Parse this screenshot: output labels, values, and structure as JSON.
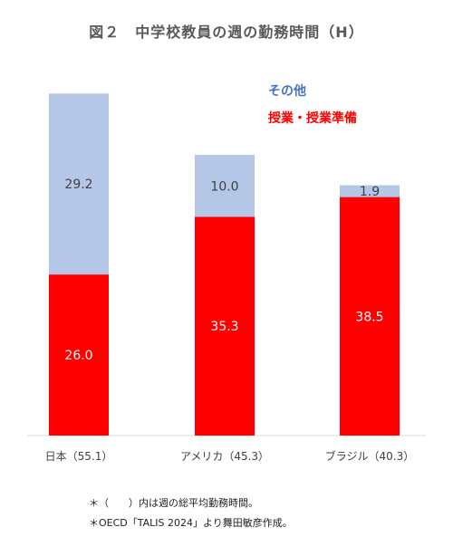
{
  "chart_data": {
    "type": "bar",
    "stacked": true,
    "title": "図２　中学校教員の週の勤務時間（H）",
    "categories": [
      "日本（55.1）",
      "アメリカ（45.3）",
      "ブラジル（40.3）"
    ],
    "series": [
      {
        "name": "授業・授業準備",
        "values": [
          26.0,
          35.3,
          38.5
        ],
        "color": "#ff0000",
        "label_color": "#ffffff"
      },
      {
        "name": "その他",
        "values": [
          29.2,
          10.0,
          1.9
        ],
        "color": "#b4c7e7",
        "label_color": "#404040"
      }
    ],
    "legend_position": "top-right",
    "grid": false,
    "ylim": [
      0,
      55.1
    ]
  },
  "footnotes": [
    "＊（　　）内は週の総平均勤務時間。",
    "＊OECD「TALIS 2024」より舞田敏彦作成。"
  ]
}
